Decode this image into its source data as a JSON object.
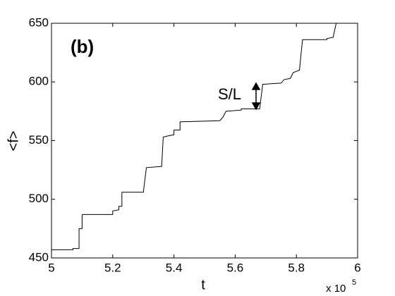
{
  "chart_data": {
    "type": "line",
    "panel_label": "(b)",
    "xlabel": "t",
    "ylabel": "<f>",
    "x_multiplier": "x 10",
    "x_multiplier_exponent": "5",
    "annotation": "S/L",
    "x": [
      5.0,
      5.07,
      5.07,
      5.09,
      5.09,
      5.1,
      5.1,
      5.2,
      5.2,
      5.22,
      5.22,
      5.23,
      5.23,
      5.3,
      5.31,
      5.36,
      5.365,
      5.38,
      5.4,
      5.4,
      5.42,
      5.42,
      5.55,
      5.56,
      5.57,
      5.62,
      5.62,
      5.68,
      5.69,
      5.75,
      5.76,
      5.78,
      5.79,
      5.81,
      5.82,
      5.9,
      5.9,
      5.92,
      5.93
    ],
    "series": [
      {
        "color": "#000000",
        "values": [
          457,
          457,
          458,
          458,
          475,
          475,
          487,
          487,
          490,
          491,
          494,
          494,
          506,
          506,
          527,
          528,
          553,
          554,
          555,
          559,
          559,
          566,
          567,
          570,
          575,
          576,
          577,
          577,
          598,
          599,
          602,
          603,
          608,
          610,
          636,
          636,
          637,
          638,
          650
        ]
      }
    ],
    "xlim": [
      5,
      6
    ],
    "xticks": [
      5,
      5.2,
      5.4,
      5.6,
      5.8,
      6
    ],
    "ylim": [
      450,
      650
    ],
    "yticks": [
      450,
      500,
      550,
      600,
      650
    ]
  }
}
